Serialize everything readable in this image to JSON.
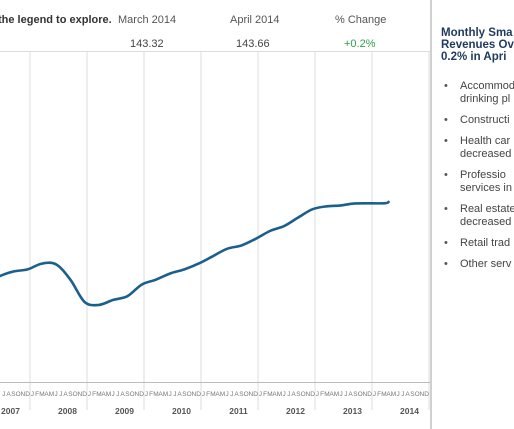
{
  "header": {
    "legend_hint": "the legend to explore.",
    "col_march_label": "March 2014",
    "col_april_label": "April 2014",
    "col_change_label": "% Change",
    "march_value": "143.32",
    "april_value": "143.66",
    "change_value": "+0.2%"
  },
  "colors": {
    "series_line": "#1b5f8c",
    "positive_change": "#2e9e48",
    "grid": "#dddddd"
  },
  "side_panel": {
    "title": "Monthly Sma\nRevenues Ov\n0.2% in Apri",
    "items": [
      "Accommod\ndrinking pl",
      "Constructi",
      "Health car\ndecreased",
      "Professio\nservices in",
      "Real estate\ndecreased",
      "Retail trad",
      "Other serv"
    ]
  },
  "chart_data": {
    "type": "line",
    "x_years": [
      "2007",
      "2008",
      "2009",
      "2010",
      "2011",
      "2012",
      "2013",
      "2014"
    ],
    "month_tick_letters": "JFMAMJJASOND",
    "first_visible_month_index": 11,
    "last_visible_month_index": 3,
    "ylim": [
      100,
      180
    ],
    "series": [
      {
        "values": [
          {
            "x": "2006-12",
            "y": 122.6
          },
          {
            "x": "2007-03",
            "y": 123.8
          },
          {
            "x": "2007-06",
            "y": 125.6
          },
          {
            "x": "2007-09",
            "y": 126.8
          },
          {
            "x": "2007-12",
            "y": 127.3
          },
          {
            "x": "2008-03",
            "y": 128.7
          },
          {
            "x": "2008-06",
            "y": 128.5
          },
          {
            "x": "2008-09",
            "y": 124.8
          },
          {
            "x": "2008-12",
            "y": 119.4
          },
          {
            "x": "2009-03",
            "y": 118.7
          },
          {
            "x": "2009-06",
            "y": 119.9
          },
          {
            "x": "2009-09",
            "y": 120.8
          },
          {
            "x": "2009-12",
            "y": 123.6
          },
          {
            "x": "2010-03",
            "y": 124.8
          },
          {
            "x": "2010-06",
            "y": 126.3
          },
          {
            "x": "2010-09",
            "y": 127.3
          },
          {
            "x": "2010-12",
            "y": 128.7
          },
          {
            "x": "2011-03",
            "y": 130.5
          },
          {
            "x": "2011-06",
            "y": 132.3
          },
          {
            "x": "2011-09",
            "y": 133.1
          },
          {
            "x": "2011-12",
            "y": 134.7
          },
          {
            "x": "2012-03",
            "y": 136.6
          },
          {
            "x": "2012-06",
            "y": 137.8
          },
          {
            "x": "2012-09",
            "y": 139.9
          },
          {
            "x": "2012-12",
            "y": 141.9
          },
          {
            "x": "2013-03",
            "y": 142.6
          },
          {
            "x": "2013-06",
            "y": 142.8
          },
          {
            "x": "2013-09",
            "y": 143.3
          },
          {
            "x": "2014-03",
            "y": 143.32
          },
          {
            "x": "2014-04",
            "y": 143.66
          }
        ]
      }
    ]
  }
}
